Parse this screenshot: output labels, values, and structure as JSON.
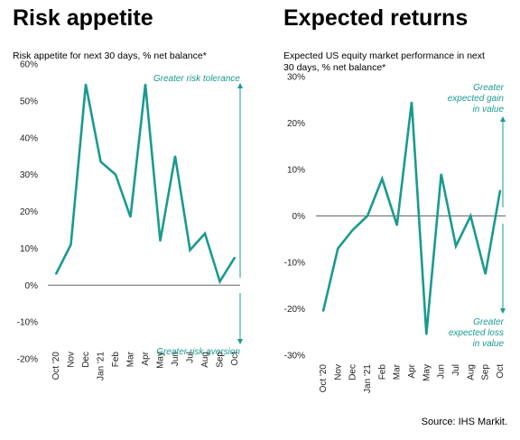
{
  "colors": {
    "accent": "#1a9a8f",
    "axis": "#666666",
    "text": "#222222"
  },
  "source": "Source: IHS Markit.",
  "chart_data": [
    {
      "type": "line",
      "title": "Risk appetite",
      "subtitle": "Risk appetite for next 30 days, % net balance*",
      "categories": [
        "Oct '20",
        "Nov",
        "Dec",
        "Jan '21",
        "Feb",
        "Mar",
        "Apr",
        "May",
        "Jun",
        "Jul",
        "Aug",
        "Sep",
        "Oct"
      ],
      "values": [
        3,
        11,
        54.5,
        33.5,
        30,
        18.5,
        54.5,
        12,
        35,
        9.5,
        14,
        1,
        7.5
      ],
      "ylim": [
        -20,
        60
      ],
      "yticks": [
        60,
        50,
        40,
        30,
        20,
        10,
        0,
        -10,
        -20
      ],
      "ytick_labels": [
        "60%",
        "50%",
        "40%",
        "30%",
        "20%",
        "10%",
        "0%",
        "-10%",
        "-20%"
      ],
      "annotations": {
        "top": "Greater risk tolerance",
        "bottom": "Greater risk aversion"
      }
    },
    {
      "type": "line",
      "title": "Expected returns",
      "subtitle": "Expected US equity market performance in next 30 days, % net balance*",
      "categories": [
        "Oct '20",
        "Nov",
        "Dec",
        "Jan '21",
        "Feb",
        "Mar",
        "Apr",
        "May",
        "Jun",
        "Jul",
        "Aug",
        "Sep",
        "Oct"
      ],
      "values": [
        -20.5,
        -7,
        -3,
        0,
        8,
        -2,
        24.5,
        -25.5,
        9,
        -6.5,
        0,
        -12.5,
        5.5
      ],
      "ylim": [
        -30,
        30
      ],
      "yticks": [
        30,
        20,
        10,
        0,
        -10,
        -20,
        -30
      ],
      "ytick_labels": [
        "30%",
        "20%",
        "10%",
        "0%",
        "-10%",
        "-20%",
        "-30%"
      ],
      "annotations": {
        "top": "Greater expected gain in value",
        "bottom": "Greater expected loss in value"
      }
    }
  ]
}
